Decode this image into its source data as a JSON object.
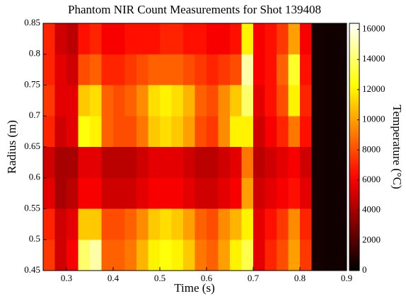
{
  "chart_data": {
    "type": "heatmap",
    "title": "Phantom NIR Count Measurements for Shot 139408",
    "x_label": "Time (s)",
    "y_label": "Radius (m)",
    "colorbar_label": "Temperature (°C)",
    "colormap": "hot",
    "x": [
      0.2625,
      0.2875,
      0.3125,
      0.3375,
      0.3625,
      0.3875,
      0.4125,
      0.4375,
      0.4625,
      0.4875,
      0.5125,
      0.5375,
      0.5625,
      0.5875,
      0.6125,
      0.6375,
      0.6625,
      0.6875,
      0.7125,
      0.7375,
      0.7625,
      0.7875,
      0.8125,
      0.8375,
      0.8625,
      0.8875
    ],
    "y": [
      0.825,
      0.775,
      0.725,
      0.675,
      0.625,
      0.575,
      0.525,
      0.475
    ],
    "values": [
      [
        7000,
        5000,
        4500,
        6500,
        7000,
        6000,
        6000,
        6500,
        6500,
        6500,
        7000,
        7000,
        6500,
        6500,
        6000,
        6000,
        6500,
        12000,
        6000,
        6500,
        7500,
        10000,
        6000,
        500,
        400,
        400
      ],
      [
        7000,
        5500,
        5000,
        8000,
        8500,
        7000,
        7000,
        7500,
        8000,
        8500,
        8500,
        8500,
        8000,
        7500,
        7000,
        7500,
        8000,
        15000,
        6000,
        6500,
        8500,
        13000,
        6500,
        500,
        400,
        400
      ],
      [
        7500,
        5500,
        5500,
        11000,
        11500,
        8500,
        8000,
        8500,
        9500,
        11500,
        12000,
        11500,
        10500,
        8500,
        8000,
        9500,
        11000,
        14000,
        5500,
        6500,
        8000,
        12000,
        7000,
        500,
        400,
        400
      ],
      [
        7000,
        5000,
        5500,
        12500,
        12000,
        8500,
        8000,
        8000,
        9000,
        11000,
        11500,
        11000,
        10000,
        8000,
        7500,
        9500,
        12000,
        12000,
        5000,
        6000,
        7000,
        9000,
        6500,
        500,
        400,
        400
      ],
      [
        5000,
        4000,
        4000,
        5500,
        5500,
        4500,
        4500,
        4500,
        5000,
        5500,
        5500,
        5500,
        5000,
        4500,
        4500,
        5000,
        5500,
        9000,
        4500,
        5000,
        5500,
        6000,
        5000,
        500,
        400,
        400
      ],
      [
        5500,
        4000,
        4500,
        6000,
        6000,
        5000,
        5000,
        5000,
        5500,
        6000,
        6000,
        6000,
        5500,
        5000,
        5000,
        5500,
        6000,
        10000,
        5000,
        5500,
        6000,
        6500,
        5500,
        500,
        400,
        400
      ],
      [
        7000,
        5000,
        5500,
        11000,
        11000,
        8000,
        8000,
        8500,
        9500,
        11000,
        11500,
        11000,
        10000,
        8500,
        8000,
        9500,
        10500,
        12000,
        5500,
        6500,
        7500,
        9500,
        7000,
        500,
        400,
        400
      ],
      [
        7500,
        5000,
        6000,
        14000,
        15000,
        8500,
        8500,
        9000,
        10500,
        12000,
        12500,
        12000,
        11000,
        9000,
        8500,
        10000,
        12000,
        13500,
        5500,
        7000,
        8000,
        10000,
        7500,
        500,
        400,
        400
      ]
    ],
    "xlim": [
      0.25,
      0.9
    ],
    "xticks": [
      0.3,
      0.4,
      0.5,
      0.6,
      0.7,
      0.8,
      0.9
    ],
    "ylim": [
      0.45,
      0.85
    ],
    "yticks": [
      0.45,
      0.5,
      0.55,
      0.6,
      0.65,
      0.7,
      0.75,
      0.8,
      0.85
    ],
    "zlim": [
      0,
      16400
    ],
    "zticks": [
      0,
      2000,
      4000,
      6000,
      8000,
      10000,
      12000,
      14000,
      16000
    ]
  }
}
